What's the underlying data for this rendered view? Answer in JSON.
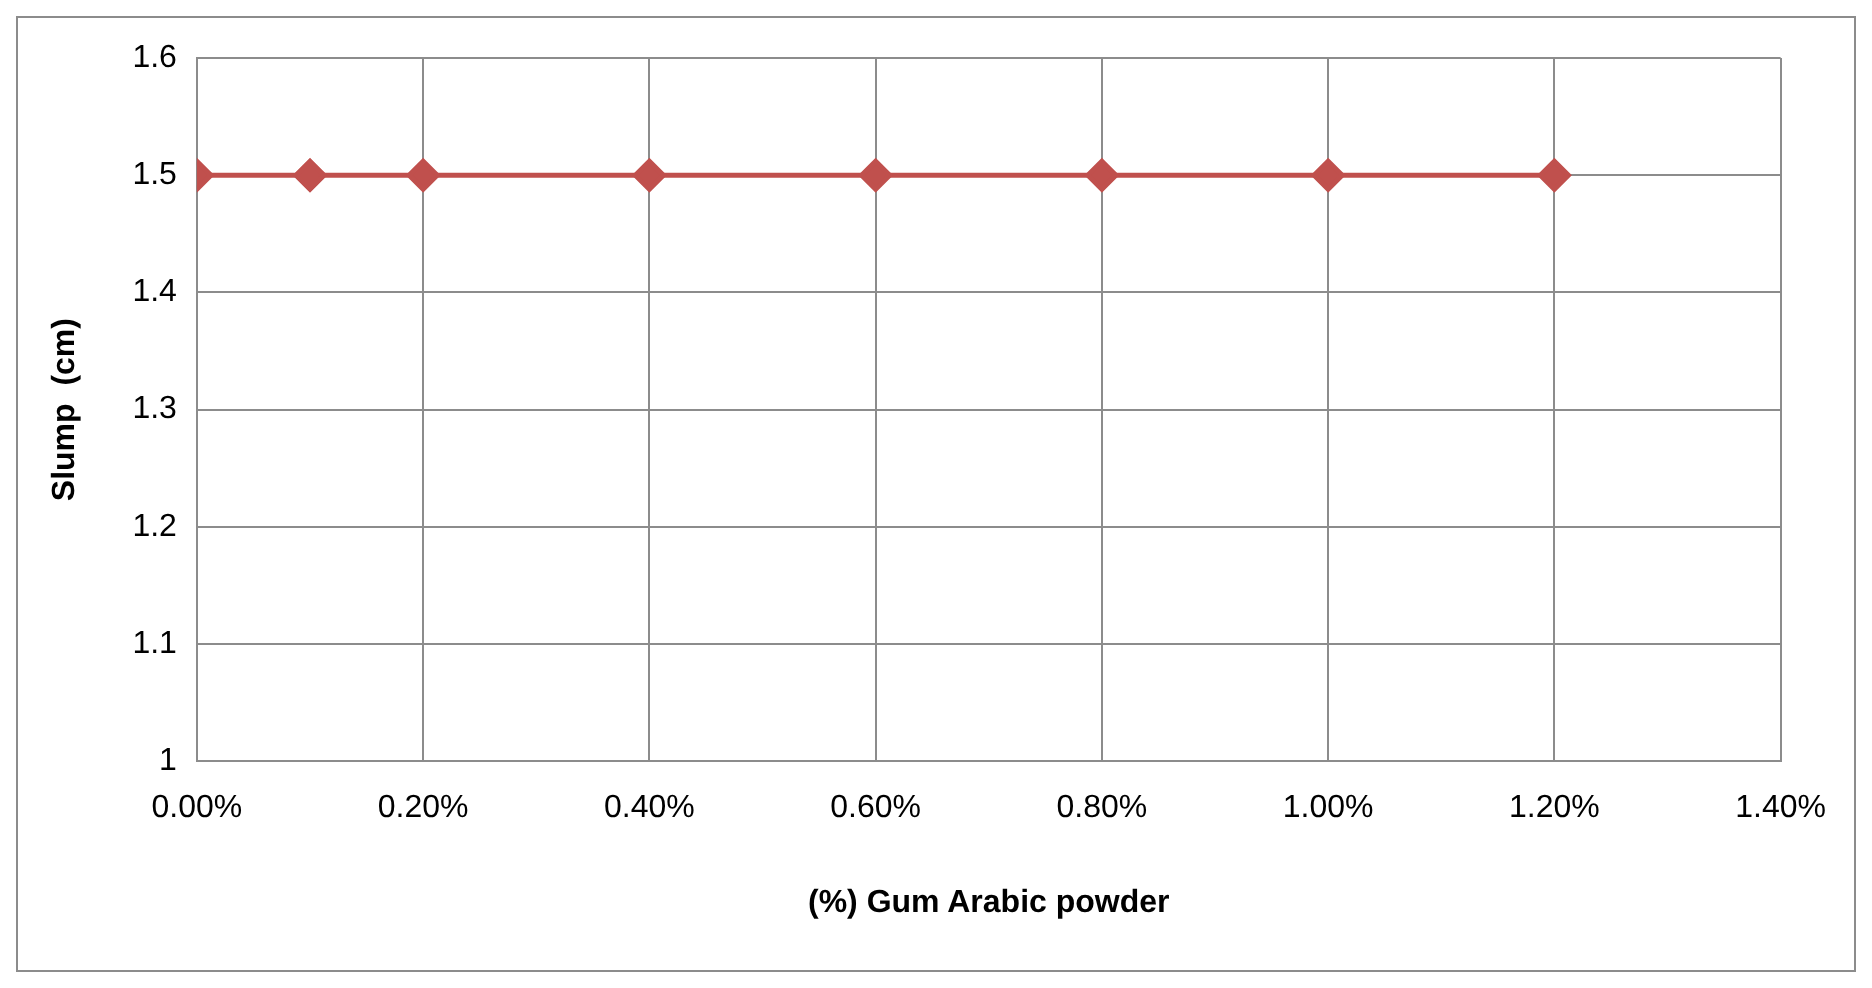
{
  "chart_data": {
    "type": "line",
    "xlabel": "(%) Gum Arabic powder",
    "ylabel": "Slump  (cm)",
    "x": [
      0,
      0.1,
      0.2,
      0.4,
      0.6,
      0.8,
      1.0,
      1.2
    ],
    "series": [
      {
        "color": "#c0504d",
        "values": [
          1.5,
          1.5,
          1.5,
          1.5,
          1.5,
          1.5,
          1.5,
          1.5
        ]
      }
    ],
    "xlim": [
      0,
      1.4
    ],
    "xticks": [
      {
        "value": 0,
        "label": "0.00%"
      },
      {
        "value": 0.2,
        "label": "0.20%"
      },
      {
        "value": 0.4,
        "label": "0.40%"
      },
      {
        "value": 0.6,
        "label": "0.60%"
      },
      {
        "value": 0.8,
        "label": "0.80%"
      },
      {
        "value": 1.0,
        "label": "1.00%"
      },
      {
        "value": 1.2,
        "label": "1.20%"
      },
      {
        "value": 1.4,
        "label": "1.40%"
      }
    ],
    "ylim": [
      1,
      1.6
    ],
    "yticks": [
      1,
      1.1,
      1.2,
      1.3,
      1.4,
      1.5,
      1.6
    ],
    "grid": true,
    "legend": false,
    "marker": "diamond",
    "line_style": "solid"
  }
}
